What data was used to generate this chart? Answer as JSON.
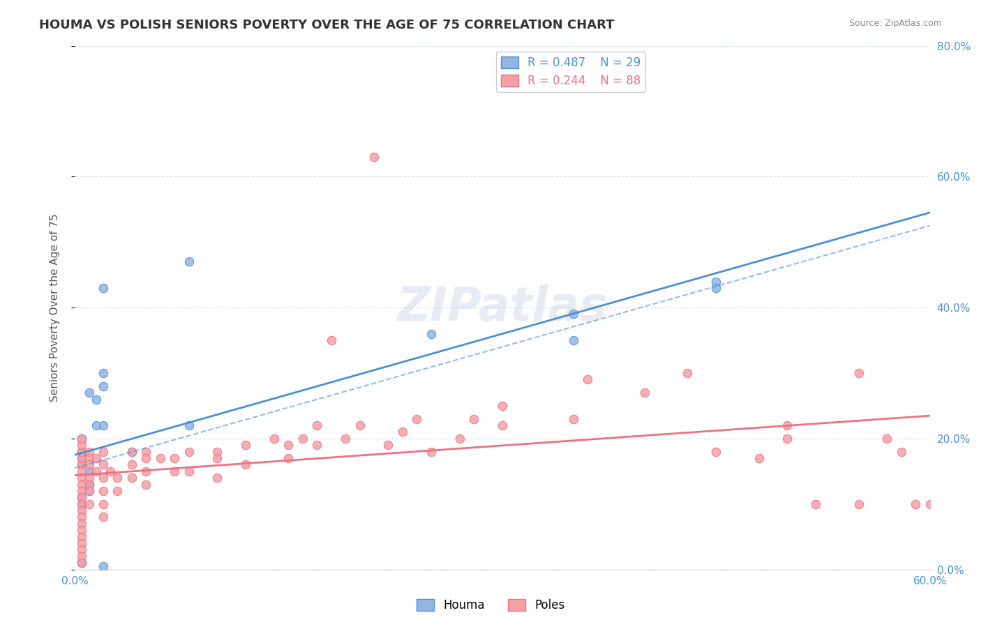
{
  "title": "HOUMA VS POLISH SENIORS POVERTY OVER THE AGE OF 75 CORRELATION CHART",
  "source": "Source: ZipAtlas.com",
  "ylabel": "Seniors Poverty Over the Age of 75",
  "xlim": [
    0.0,
    0.6
  ],
  "ylim": [
    0.0,
    0.8
  ],
  "xticks": [
    0.0,
    0.1,
    0.2,
    0.3,
    0.4,
    0.5,
    0.6
  ],
  "yticks": [
    0.0,
    0.2,
    0.4,
    0.6,
    0.8
  ],
  "houma_color": "#92b4e3",
  "poles_color": "#f4a0a8",
  "trend_houma_color": "#4a90d9",
  "trend_poles_color": "#f07080",
  "houma_R": 0.487,
  "houma_N": 29,
  "poles_R": 0.244,
  "poles_N": 88,
  "legend_label1": "Houma",
  "legend_label2": "Poles",
  "background_color": "#ffffff",
  "grid_color": "#d0d8e8",
  "houma_x": [
    0.02,
    0.02,
    0.015,
    0.01,
    0.005,
    0.005,
    0.005,
    0.01,
    0.01,
    0.01,
    0.005,
    0.005,
    0.02,
    0.02,
    0.015,
    0.08,
    0.08,
    0.25,
    0.02,
    0.04,
    0.005,
    0.005,
    0.35,
    0.35,
    0.45,
    0.45,
    0.01,
    0.005,
    0.005
  ],
  "houma_y": [
    0.43,
    0.22,
    0.22,
    0.27,
    0.2,
    0.18,
    0.16,
    0.15,
    0.13,
    0.12,
    0.11,
    0.1,
    0.3,
    0.28,
    0.26,
    0.47,
    0.22,
    0.36,
    0.005,
    0.18,
    0.18,
    0.17,
    0.39,
    0.35,
    0.44,
    0.43,
    0.13,
    0.01,
    0.01
  ],
  "poles_x": [
    0.005,
    0.005,
    0.005,
    0.005,
    0.005,
    0.005,
    0.005,
    0.005,
    0.005,
    0.005,
    0.005,
    0.005,
    0.005,
    0.005,
    0.005,
    0.005,
    0.005,
    0.005,
    0.005,
    0.005,
    0.01,
    0.01,
    0.01,
    0.01,
    0.01,
    0.01,
    0.01,
    0.015,
    0.015,
    0.02,
    0.02,
    0.02,
    0.02,
    0.02,
    0.02,
    0.025,
    0.03,
    0.03,
    0.04,
    0.04,
    0.04,
    0.05,
    0.05,
    0.05,
    0.05,
    0.06,
    0.07,
    0.07,
    0.08,
    0.08,
    0.1,
    0.1,
    0.1,
    0.12,
    0.12,
    0.14,
    0.15,
    0.15,
    0.16,
    0.17,
    0.17,
    0.18,
    0.19,
    0.2,
    0.21,
    0.22,
    0.23,
    0.24,
    0.25,
    0.27,
    0.28,
    0.3,
    0.3,
    0.35,
    0.36,
    0.4,
    0.43,
    0.45,
    0.48,
    0.5,
    0.52,
    0.55,
    0.57,
    0.58,
    0.59,
    0.6,
    0.55,
    0.5
  ],
  "poles_y": [
    0.16,
    0.15,
    0.14,
    0.13,
    0.12,
    0.11,
    0.1,
    0.09,
    0.08,
    0.07,
    0.06,
    0.05,
    0.04,
    0.03,
    0.02,
    0.01,
    0.17,
    0.18,
    0.19,
    0.2,
    0.18,
    0.17,
    0.16,
    0.14,
    0.13,
    0.12,
    0.1,
    0.17,
    0.15,
    0.18,
    0.16,
    0.14,
    0.12,
    0.1,
    0.08,
    0.15,
    0.14,
    0.12,
    0.18,
    0.16,
    0.14,
    0.18,
    0.17,
    0.15,
    0.13,
    0.17,
    0.17,
    0.15,
    0.18,
    0.15,
    0.18,
    0.17,
    0.14,
    0.19,
    0.16,
    0.2,
    0.19,
    0.17,
    0.2,
    0.22,
    0.19,
    0.35,
    0.2,
    0.22,
    0.63,
    0.19,
    0.21,
    0.23,
    0.18,
    0.2,
    0.23,
    0.25,
    0.22,
    0.23,
    0.29,
    0.27,
    0.3,
    0.18,
    0.17,
    0.2,
    0.1,
    0.1,
    0.2,
    0.18,
    0.1,
    0.1,
    0.3,
    0.22
  ]
}
